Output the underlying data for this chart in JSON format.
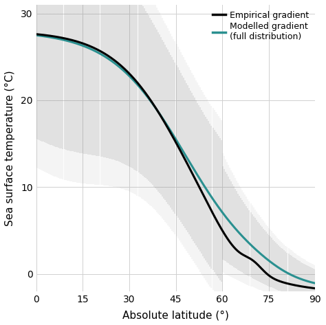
{
  "title": "",
  "xlabel": "Absolute latitude (°)",
  "ylabel": "Sea surface temperature (°C)",
  "xlim": [
    0,
    90
  ],
  "ylim": [
    -2,
    31
  ],
  "xticks": [
    0,
    15,
    30,
    45,
    60,
    75,
    90
  ],
  "yticks": [
    0,
    10,
    20,
    30
  ],
  "empirical_color": "#000000",
  "modelled_color": "#2a9090",
  "background_color": "#ffffff",
  "grid_color": "#d0d0d0",
  "empirical_lw": 2.2,
  "modelled_lw": 2.2,
  "legend_labels": [
    "Empirical gradient",
    "Modelled gradient\n(full distribution)"
  ],
  "figsize": [
    4.74,
    4.73
  ],
  "dpi": 100
}
